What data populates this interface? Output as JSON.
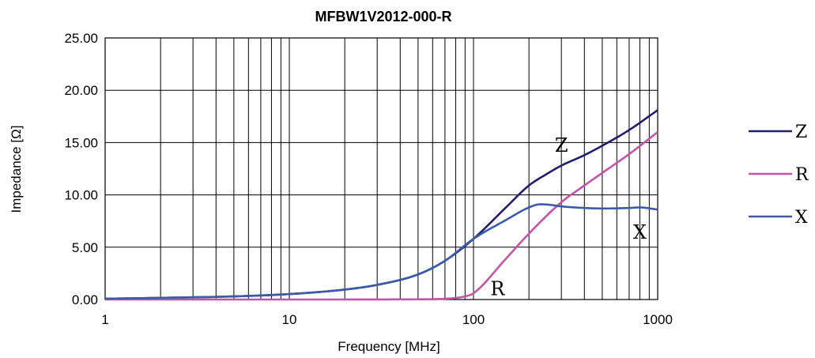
{
  "chart_data": {
    "type": "line",
    "title": "MFBW1V2012-000-R",
    "xlabel": "Frequency [MHz]",
    "ylabel": "Impedance  [Ω]",
    "xscale": "log",
    "xlim": [
      1,
      1000
    ],
    "ylim": [
      0,
      25
    ],
    "grid": true,
    "legend_position": "right",
    "x_tick_labels": [
      "1",
      "10",
      "100",
      "1000"
    ],
    "y_tick_labels": [
      "0.00",
      "5.00",
      "10.00",
      "15.00",
      "20.00",
      "25.00"
    ],
    "series": [
      {
        "name": "Z",
        "color": "#1f1f6b",
        "x": [
          1,
          2,
          5,
          10,
          20,
          30,
          50,
          70,
          100,
          150,
          200,
          250,
          300,
          400,
          500,
          700,
          1000
        ],
        "y": [
          0.08,
          0.16,
          0.3,
          0.52,
          0.95,
          1.4,
          2.4,
          3.7,
          5.8,
          8.8,
          10.9,
          12.0,
          12.8,
          13.8,
          14.7,
          16.2,
          18.1
        ]
      },
      {
        "name": "R",
        "color": "#c454a8",
        "x": [
          1,
          10,
          50,
          80,
          90,
          100,
          150,
          200,
          300,
          400,
          500,
          700,
          1000
        ],
        "y": [
          0.0,
          0.0,
          0.02,
          0.15,
          0.3,
          0.6,
          3.9,
          6.3,
          9.3,
          10.9,
          12.1,
          13.9,
          16.0
        ]
      },
      {
        "name": "X",
        "color": "#3b5ba8",
        "x": [
          1,
          2,
          5,
          10,
          20,
          30,
          50,
          70,
          100,
          150,
          200,
          230,
          260,
          300,
          400,
          500,
          700,
          800,
          1000
        ],
        "y": [
          0.08,
          0.16,
          0.3,
          0.52,
          0.95,
          1.4,
          2.4,
          3.7,
          5.8,
          7.6,
          8.8,
          9.1,
          9.05,
          8.9,
          8.75,
          8.7,
          8.75,
          8.8,
          8.6
        ]
      }
    ],
    "curve_labels": [
      {
        "text": "Z",
        "x": 300,
        "y": 14.8
      },
      {
        "text": "R",
        "x": 135,
        "y": 1.1
      },
      {
        "text": "X",
        "x": 800,
        "y": 6.5
      }
    ]
  }
}
